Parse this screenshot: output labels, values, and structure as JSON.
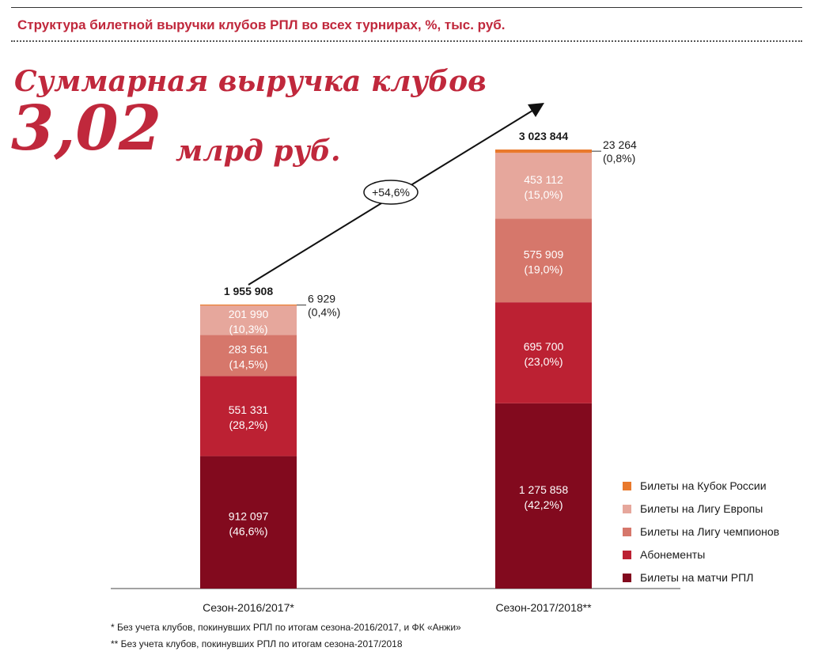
{
  "header": {
    "subtitle": "Структура билетной выручки клубов РПЛ во всех турнирах, %, тыс. руб."
  },
  "headline": {
    "title": "Суммарная выручка клубов",
    "big_value": "3,02",
    "big_unit": "млрд руб."
  },
  "chart_data": {
    "type": "bar",
    "stacked": true,
    "categories": [
      "Сезон-2016/2017*",
      "Сезон-2017/2018**"
    ],
    "series": [
      {
        "name": "Билеты на матчи РПЛ",
        "values": [
          912097,
          1275858
        ],
        "labels": [
          "912 097\n(46,6%)",
          "1 275 858\n(42,2%)"
        ],
        "color": "#820a1e"
      },
      {
        "name": "Абонементы",
        "values": [
          551331,
          695700
        ],
        "labels": [
          "551 331\n(28,2%)",
          "695 700\n(23,0%)"
        ],
        "color": "#bc2133"
      },
      {
        "name": "Билеты на Лигу чемпионов",
        "values": [
          283561,
          575909
        ],
        "labels": [
          "283 561\n(14,5%)",
          "575 909\n(19,0%)"
        ],
        "color": "#d6776b"
      },
      {
        "name": "Билеты на Лигу Европы",
        "values": [
          201990,
          453112
        ],
        "labels": [
          "201 990\n(10,3%)",
          "453 112\n(15,0%)"
        ],
        "color": "#e6a79c"
      },
      {
        "name": "Билеты на Кубок России",
        "values": [
          6929,
          23264
        ],
        "labels": [
          "6 929\n(0,4%)",
          "23 264\n(0,8%)"
        ],
        "color": "#e9792c"
      }
    ],
    "totals": [
      "1 955 908",
      "3 023 844"
    ],
    "growth_label": "+54,6%",
    "legend_position": "bottom-right",
    "ylim": [
      0,
      3023844
    ],
    "grid": false
  },
  "footnotes": [
    "* Без учета клубов, покинувших РПЛ по итогам сезона-2016/2017, и ФК «Анжи»",
    "** Без учета клубов, покинувших РПЛ по итогам сезона-2017/2018"
  ]
}
